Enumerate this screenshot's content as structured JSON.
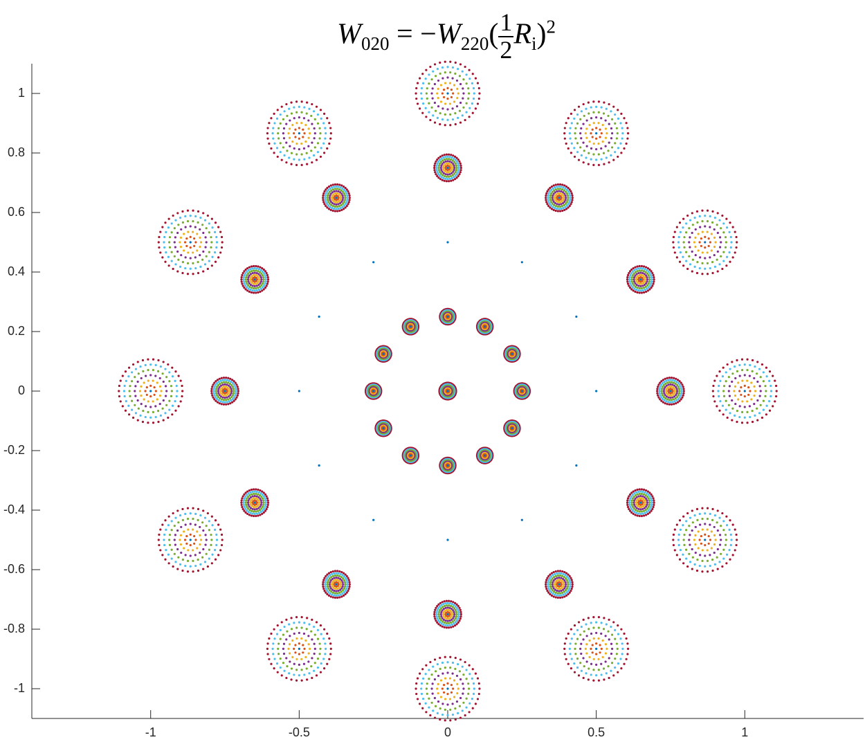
{
  "chart_data": {
    "type": "spot",
    "title": {
      "lhs": "W",
      "lhs_sub": "020",
      "op": "= −",
      "rhs": "W",
      "rhs_sub": "220",
      "open": "(",
      "num": "1",
      "den": "2",
      "var": "R",
      "var_sub": "i",
      "close": ")",
      "sup": "2"
    },
    "xlim": [
      -1.4,
      1.4
    ],
    "ylim": [
      -1.1,
      1.1
    ],
    "xticks": [
      -1,
      -0.5,
      0,
      0.5,
      1
    ],
    "yticks": [
      -1,
      -0.8,
      -0.6,
      -0.4,
      -0.2,
      0,
      0.2,
      0.4,
      0.6,
      0.8,
      1
    ],
    "spots": {
      "x": [
        0,
        0.25,
        0.2165,
        0.125,
        0,
        -0.125,
        -0.2165,
        -0.25,
        -0.2165,
        -0.125,
        0,
        0.125,
        0.2165,
        0.5,
        0.433,
        0.25,
        0,
        -0.25,
        -0.433,
        -0.5,
        -0.433,
        -0.25,
        0,
        0.25,
        0.433,
        0.75,
        0.6495,
        0.375,
        0,
        -0.375,
        -0.6495,
        -0.75,
        -0.6495,
        -0.375,
        0,
        0.375,
        0.6495,
        1,
        0.866,
        0.5,
        0,
        -0.5,
        -0.866,
        -1,
        -0.866,
        -0.5,
        0,
        0.5,
        0.866
      ],
      "y": [
        0,
        0,
        0.125,
        0.2165,
        0.25,
        0.2165,
        0.125,
        0,
        -0.125,
        -0.2165,
        -0.25,
        -0.2165,
        -0.125,
        0,
        0.25,
        0.433,
        0.5,
        0.433,
        0.25,
        0,
        -0.25,
        -0.433,
        -0.5,
        -0.433,
        -0.25,
        0,
        0.375,
        0.6495,
        0.75,
        0.6495,
        0.375,
        0,
        -0.375,
        -0.6495,
        -0.75,
        -0.6495,
        -0.375,
        0,
        0.5,
        0.866,
        1,
        0.866,
        0.5,
        0,
        -0.5,
        -0.866,
        -1,
        -0.866,
        -0.5
      ],
      "blur": [
        0.028,
        0.026,
        0.026,
        0.026,
        0.026,
        0.026,
        0.026,
        0.026,
        0.026,
        0.026,
        0.026,
        0.026,
        0.026,
        0,
        0,
        0,
        0,
        0,
        0,
        0,
        0,
        0,
        0,
        0,
        0,
        0.045,
        0.045,
        0.045,
        0.045,
        0.045,
        0.045,
        0.045,
        0.045,
        0.045,
        0.045,
        0.045,
        0.045,
        0.107,
        0.107,
        0.107,
        0.107,
        0.107,
        0.107,
        0.107,
        0.107,
        0.107,
        0.107,
        0.107,
        0.107
      ]
    },
    "rings": [
      {
        "rho": 0,
        "color": "#0072BD",
        "points": 1
      },
      {
        "rho": 0.1667,
        "color": "#D95319",
        "points": 8
      },
      {
        "rho": 0.3333,
        "color": "#EDB120",
        "points": 14
      },
      {
        "rho": 0.5,
        "color": "#7E2F8E",
        "points": 20
      },
      {
        "rho": 0.6667,
        "color": "#77AC30",
        "points": 26
      },
      {
        "rho": 0.8333,
        "color": "#4DBEEE",
        "points": 32
      },
      {
        "rho": 1,
        "color": "#A2142F",
        "points": 38
      }
    ],
    "axis_color": "#262626"
  }
}
